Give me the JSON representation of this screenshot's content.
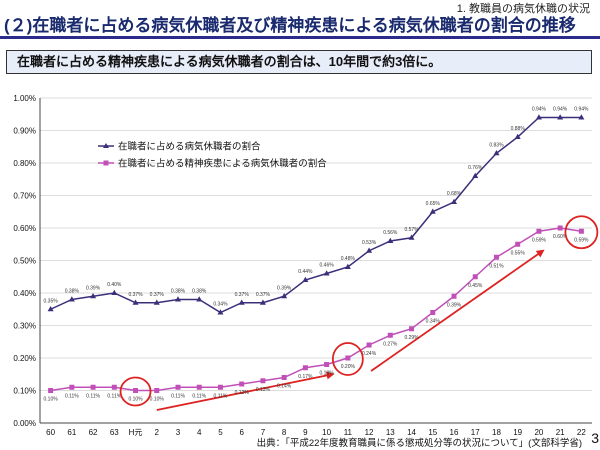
{
  "header": {
    "section": "1. 教職員の病気休職の状況",
    "title": "(２)在職者に占める病気休職者及び精神疾患による病気休職者の割合の推移",
    "summary": "在職者に占める精神疾患による病気休職者の割合は、10年間で約3倍に。"
  },
  "footer": {
    "source": "出典：「平成22年度教育職員に係る懲戒処分等の状況について」(文部科学省)",
    "page": "3"
  },
  "colors": {
    "series1": "#3a2f7a",
    "series2": "#c050b8",
    "highlight": "#dd2222",
    "title": "#1a2a6e"
  },
  "chart_data": {
    "type": "line",
    "categories": [
      "60",
      "61",
      "62",
      "63",
      "H元",
      "2",
      "3",
      "4",
      "5",
      "6",
      "7",
      "8",
      "9",
      "10",
      "11",
      "12",
      "13",
      "14",
      "15",
      "16",
      "17",
      "18",
      "19",
      "20",
      "21",
      "22"
    ],
    "ylim": [
      0,
      1.0
    ],
    "yticks": [
      "0.00%",
      "0.10%",
      "0.20%",
      "0.30%",
      "0.40%",
      "0.50%",
      "0.60%",
      "0.70%",
      "0.80%",
      "0.90%",
      "1.00%"
    ],
    "grid": true,
    "legend_position": "top-left",
    "series": [
      {
        "name": "在職者に占める病気休職者の割合",
        "values": [
          0.35,
          0.38,
          0.39,
          0.4,
          0.37,
          0.37,
          0.38,
          0.38,
          0.34,
          0.37,
          0.37,
          0.39,
          0.44,
          0.46,
          0.48,
          0.53,
          0.56,
          0.57,
          0.65,
          0.68,
          0.76,
          0.83,
          0.88,
          0.94,
          0.94,
          0.94
        ],
        "labels": [
          "0.35%",
          "0.38%",
          "0.39%",
          "0.40%",
          "0.37%",
          "0.37%",
          "0.38%",
          "0.38%",
          "0.34%",
          "0.37%",
          "0.37%",
          "0.39%",
          "0.44%",
          "0.46%",
          "0.48%",
          "0.53%",
          "0.56%",
          "0.57%",
          "0.65%",
          "0.68%",
          "0.76%",
          "0.83%",
          "0.88%",
          "0.94%",
          "0.94%",
          "0.94%"
        ]
      },
      {
        "name": "在職者に占める精神疾患による病気休職者の割合",
        "values": [
          0.1,
          0.11,
          0.11,
          0.11,
          0.1,
          0.1,
          0.11,
          0.11,
          0.11,
          0.12,
          0.13,
          0.14,
          0.17,
          0.18,
          0.2,
          0.24,
          0.27,
          0.29,
          0.34,
          0.39,
          0.45,
          0.51,
          0.55,
          0.59,
          0.6,
          0.59
        ],
        "labels": [
          "0.10%",
          "0.11%",
          "0.11%",
          "0.11%",
          "0.10%",
          "0.10%",
          "0.11%",
          "0.11%",
          "0.11%",
          "0.12%",
          "0.13%",
          "0.14%",
          "0.17%",
          "0.18%",
          "0.20%",
          "0.24%",
          "0.27%",
          "0.29%",
          "0.34%",
          "0.39%",
          "0.45%",
          "0.51%",
          "0.55%",
          "0.59%",
          "0.60%",
          "0.59%"
        ]
      }
    ]
  }
}
